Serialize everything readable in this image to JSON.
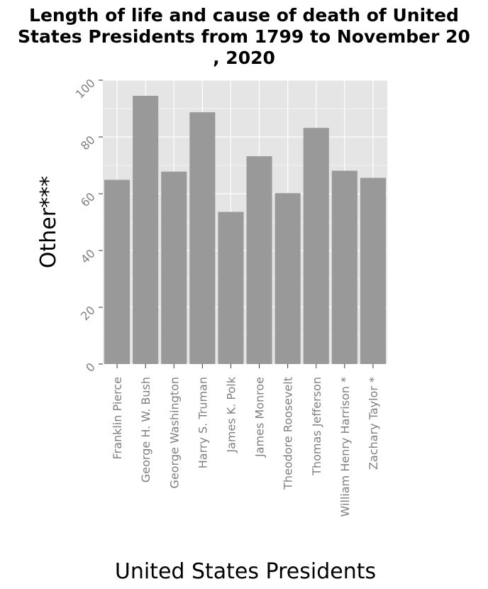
{
  "chart_data": {
    "type": "bar",
    "title": "Length of life and cause of death of United States Presidents from 1799 to November 20 , 2020",
    "title_lines": [
      "Length of life and cause of death of United",
      "States Presidents from 1799 to November 20",
      ", 2020"
    ],
    "xlabel": "United States Presidents",
    "ylabel": "Other***",
    "categories": [
      "Franklin Pierce",
      "George H. W. Bush",
      "George Washington",
      "Harry S. Truman",
      "James K. Polk",
      "James Monroe",
      "Theodore Roosevelt",
      "Thomas Jefferson",
      "William Henry Harrison *",
      "Zachary Taylor *"
    ],
    "values": [
      64.9,
      94.5,
      67.8,
      88.7,
      53.6,
      73.2,
      60.2,
      83.2,
      68.1,
      65.6
    ],
    "ylim": [
      0,
      100
    ],
    "yticks": [
      0,
      20,
      40,
      60,
      80,
      100
    ],
    "grid": true,
    "colors": {
      "bar": "#999999",
      "panel": "#e5e5e5",
      "grid": "#ffffff",
      "tick_text": "#7f7f7f"
    }
  }
}
